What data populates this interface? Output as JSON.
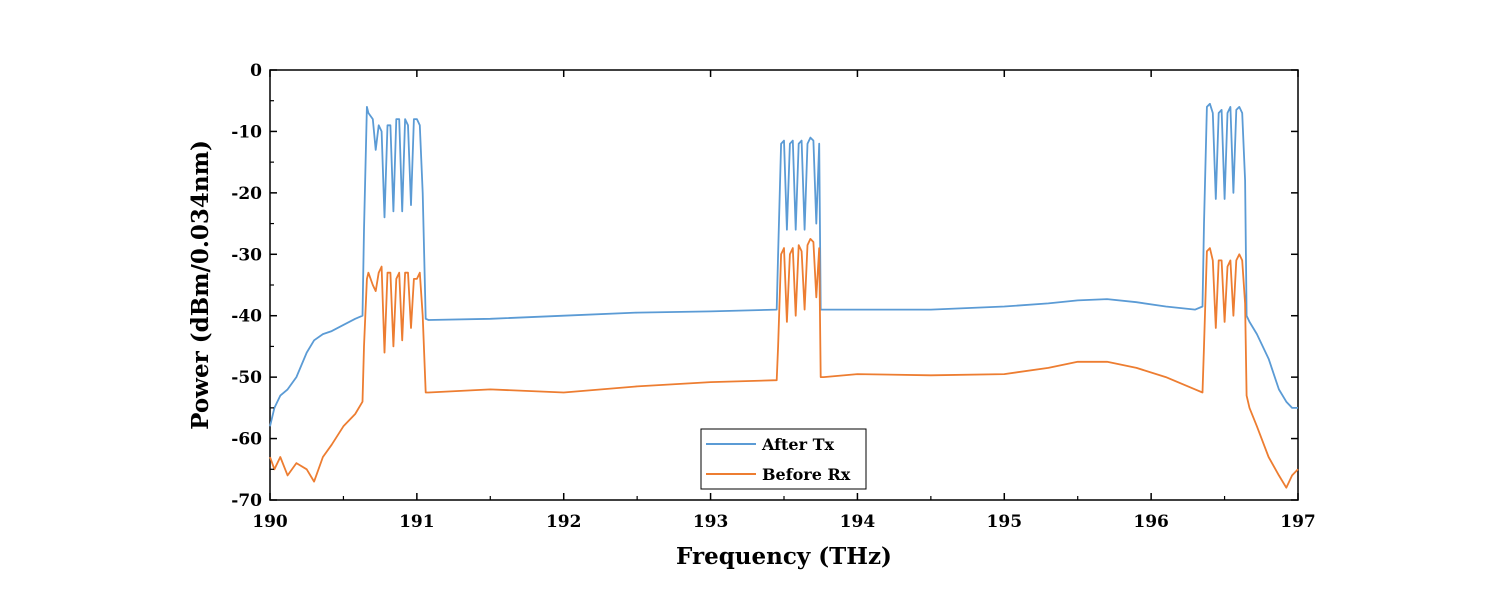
{
  "chart_data": {
    "type": "line",
    "title": "",
    "xlabel": "Frequency (THz)",
    "ylabel": "Power (dBm/0.034nm)",
    "xlim": [
      190,
      197
    ],
    "ylim": [
      -70,
      0
    ],
    "xticks": [
      "190",
      "191",
      "192",
      "193",
      "194",
      "195",
      "196",
      "197"
    ],
    "yticks": [
      "0",
      "-10",
      "-20",
      "-30",
      "-40",
      "-50",
      "-60",
      "-70"
    ],
    "grid": false,
    "legend_position": "bottom-center",
    "series": [
      {
        "name": "After Tx",
        "color": "#5b9bd5",
        "x": [
          190.0,
          190.03,
          190.07,
          190.12,
          190.18,
          190.25,
          190.3,
          190.36,
          190.42,
          190.5,
          190.58,
          190.63,
          190.64,
          190.66,
          190.67,
          190.7,
          190.72,
          190.74,
          190.76,
          190.78,
          190.8,
          190.82,
          190.84,
          190.86,
          190.88,
          190.9,
          190.92,
          190.94,
          190.96,
          190.98,
          191.0,
          191.02,
          191.04,
          191.06,
          191.08,
          191.5,
          192.0,
          192.5,
          193.0,
          193.45,
          193.46,
          193.48,
          193.5,
          193.52,
          193.54,
          193.56,
          193.58,
          193.6,
          193.62,
          193.64,
          193.66,
          193.68,
          193.7,
          193.72,
          193.74,
          193.75,
          193.77,
          194.0,
          194.5,
          195.0,
          195.3,
          195.5,
          195.7,
          195.9,
          196.1,
          196.3,
          196.35,
          196.36,
          196.38,
          196.4,
          196.42,
          196.44,
          196.46,
          196.48,
          196.5,
          196.52,
          196.54,
          196.56,
          196.58,
          196.6,
          196.62,
          196.64,
          196.65,
          196.67,
          196.72,
          196.8,
          196.87,
          196.92,
          196.96,
          197.0
        ],
        "y": [
          -58,
          -55,
          -53,
          -52,
          -50,
          -46,
          -44,
          -43,
          -42.5,
          -41.5,
          -40.5,
          -40,
          -26,
          -6,
          -7,
          -8,
          -13,
          -9,
          -10,
          -24,
          -9,
          -9,
          -23,
          -8,
          -8,
          -23,
          -8,
          -9,
          -22,
          -8,
          -8,
          -9,
          -20,
          -40.5,
          -40.7,
          -40.5,
          -40,
          -39.5,
          -39.3,
          -39,
          -30,
          -12,
          -11.5,
          -26,
          -12,
          -11.5,
          -26,
          -12,
          -11.5,
          -26,
          -12,
          -11,
          -11.5,
          -25,
          -12,
          -39,
          -39,
          -39,
          -39,
          -38.5,
          -38,
          -37.5,
          -37.3,
          -37.8,
          -38.5,
          -39,
          -38.5,
          -25,
          -6,
          -5.5,
          -7,
          -21,
          -7,
          -6.5,
          -21,
          -7,
          -6,
          -20,
          -6.5,
          -6,
          -7,
          -18,
          -40,
          -41,
          -43,
          -47,
          -52,
          -54,
          -55,
          -55
        ]
      },
      {
        "name": "Before Rx",
        "color": "#ed7d31",
        "x": [
          190.0,
          190.03,
          190.07,
          190.12,
          190.18,
          190.25,
          190.3,
          190.36,
          190.42,
          190.5,
          190.58,
          190.63,
          190.64,
          190.66,
          190.67,
          190.7,
          190.72,
          190.74,
          190.76,
          190.78,
          190.8,
          190.82,
          190.84,
          190.86,
          190.88,
          190.9,
          190.92,
          190.94,
          190.96,
          190.98,
          191.0,
          191.02,
          191.04,
          191.06,
          191.08,
          191.5,
          192.0,
          192.5,
          193.0,
          193.45,
          193.46,
          193.48,
          193.5,
          193.52,
          193.54,
          193.56,
          193.58,
          193.6,
          193.62,
          193.64,
          193.66,
          193.68,
          193.7,
          193.72,
          193.74,
          193.75,
          193.77,
          194.0,
          194.5,
          195.0,
          195.3,
          195.5,
          195.7,
          195.9,
          196.1,
          196.3,
          196.35,
          196.36,
          196.38,
          196.4,
          196.42,
          196.44,
          196.46,
          196.48,
          196.5,
          196.52,
          196.54,
          196.56,
          196.58,
          196.6,
          196.62,
          196.64,
          196.65,
          196.67,
          196.72,
          196.8,
          196.87,
          196.92,
          196.96,
          197.0
        ],
        "y": [
          -63,
          -65,
          -63,
          -66,
          -64,
          -65,
          -67,
          -63,
          -61,
          -58,
          -56,
          -54,
          -45,
          -34,
          -33,
          -35,
          -36,
          -33,
          -32,
          -46,
          -33,
          -33,
          -45,
          -34,
          -33,
          -44,
          -33,
          -33,
          -42,
          -34,
          -34,
          -33,
          -40,
          -52.5,
          -52.5,
          -52,
          -52.5,
          -51.5,
          -50.8,
          -50.5,
          -45,
          -30,
          -29,
          -41,
          -30,
          -29,
          -40,
          -28.5,
          -29.5,
          -39,
          -28.5,
          -27.5,
          -28,
          -37,
          -29,
          -50,
          -50,
          -49.5,
          -49.7,
          -49.5,
          -48.5,
          -47.5,
          -47.5,
          -48.5,
          -50,
          -52,
          -52.5,
          -45,
          -29.5,
          -29,
          -31,
          -42,
          -31,
          -31,
          -41,
          -32,
          -31,
          -40,
          -31,
          -30,
          -31,
          -38,
          -53,
          -55,
          -58,
          -63,
          -66,
          -68,
          -66,
          -65
        ]
      }
    ]
  }
}
